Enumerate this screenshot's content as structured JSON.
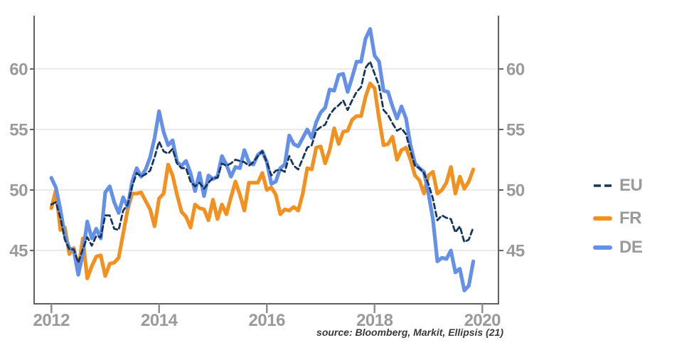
{
  "source_note": "source: Bloomberg, Markit, Ellipsis (21)",
  "legend": {
    "position": "right",
    "items": [
      {
        "label": "EU",
        "color": "#17365d",
        "style": "dashed"
      },
      {
        "label": "FR",
        "color": "#f2911f",
        "style": "solid"
      },
      {
        "label": "DE",
        "color": "#6590e8",
        "style": "solid"
      }
    ]
  },
  "chart_data": {
    "type": "line",
    "title": "",
    "xlabel": "",
    "ylabel": "",
    "frequency": "monthly",
    "x_start": "2012-01",
    "x_end": "2019-11",
    "xlim": [
      2011.68,
      2020.3
    ],
    "ylim": [
      40.6,
      64.4
    ],
    "x_tick_values": [
      2012,
      2014,
      2016,
      2018,
      2020
    ],
    "x_tick_labels": [
      "2012",
      "2014",
      "2016",
      "2018",
      "2020"
    ],
    "y_ticks": [
      45,
      50,
      55,
      60
    ],
    "y_tick_labels": [
      "45",
      "50",
      "55",
      "60"
    ],
    "y_axis_sides": "both",
    "grid": "horizontal",
    "legend_position": "right",
    "draw_order": [
      "FR",
      "DE",
      "EU"
    ],
    "series": [
      {
        "name": "EU",
        "color": "#17365d",
        "line_style": "dashed",
        "line_width": 2.8,
        "values": [
          48.8,
          49.0,
          47.7,
          45.9,
          45.1,
          45.1,
          44.0,
          45.1,
          46.1,
          45.4,
          46.2,
          46.1,
          47.9,
          47.9,
          46.8,
          46.7,
          48.3,
          48.8,
          50.3,
          51.4,
          51.1,
          51.3,
          51.6,
          52.7,
          54.0,
          53.2,
          53.0,
          53.4,
          52.2,
          51.8,
          51.8,
          50.7,
          50.3,
          50.6,
          50.1,
          50.6,
          51.0,
          51.0,
          52.2,
          52.0,
          52.2,
          52.5,
          52.4,
          52.3,
          52.0,
          52.3,
          52.8,
          53.2,
          52.3,
          51.2,
          51.6,
          51.7,
          51.5,
          52.8,
          52.0,
          51.7,
          52.6,
          53.5,
          53.7,
          54.9,
          55.2,
          55.4,
          56.2,
          56.7,
          57.0,
          57.4,
          56.6,
          57.4,
          58.1,
          58.5,
          60.1,
          60.6,
          59.6,
          58.6,
          56.6,
          56.2,
          55.5,
          54.9,
          55.1,
          54.6,
          53.2,
          52.0,
          51.8,
          51.4,
          50.5,
          49.3,
          47.5,
          47.9,
          47.7,
          47.6,
          46.5,
          47.0,
          45.7,
          45.9,
          46.9
        ]
      },
      {
        "name": "FR",
        "color": "#f2911f",
        "line_style": "solid",
        "line_width": 5.2,
        "values": [
          48.5,
          50.0,
          46.7,
          46.9,
          44.7,
          45.2,
          43.4,
          46.0,
          42.7,
          43.7,
          44.5,
          44.6,
          42.9,
          43.9,
          44.0,
          44.4,
          46.4,
          48.4,
          49.7,
          49.7,
          49.8,
          49.1,
          48.4,
          47.0,
          49.3,
          49.7,
          52.1,
          51.2,
          49.6,
          48.2,
          47.8,
          46.9,
          48.8,
          48.5,
          48.4,
          47.5,
          49.2,
          47.6,
          48.8,
          48.0,
          49.4,
          50.7,
          49.6,
          48.3,
          50.6,
          50.6,
          50.6,
          51.4,
          50.0,
          50.2,
          49.6,
          48.0,
          48.4,
          48.3,
          48.6,
          48.3,
          49.7,
          51.8,
          51.7,
          53.5,
          53.6,
          52.2,
          53.3,
          55.1,
          53.8,
          54.8,
          54.9,
          55.8,
          56.1,
          56.1,
          57.7,
          58.8,
          58.4,
          55.9,
          53.7,
          53.8,
          54.4,
          52.5,
          53.3,
          53.5,
          52.5,
          51.2,
          50.8,
          49.7,
          51.2,
          51.5,
          49.7,
          50.0,
          50.6,
          51.9,
          49.7,
          51.1,
          50.1,
          50.7,
          51.7
        ]
      },
      {
        "name": "DE",
        "color": "#6590e8",
        "line_style": "solid",
        "line_width": 5.2,
        "values": [
          51.0,
          50.2,
          48.4,
          46.2,
          45.2,
          45.0,
          43.0,
          44.7,
          47.4,
          46.0,
          46.8,
          46.0,
          49.8,
          50.3,
          49.0,
          48.1,
          49.4,
          48.6,
          50.7,
          51.8,
          51.1,
          51.7,
          52.7,
          54.3,
          56.5,
          54.8,
          53.7,
          54.1,
          52.3,
          52.0,
          52.4,
          51.4,
          49.9,
          51.4,
          49.5,
          51.2,
          50.9,
          51.1,
          52.8,
          52.1,
          51.1,
          51.9,
          51.8,
          53.3,
          52.3,
          52.1,
          52.9,
          53.2,
          52.3,
          50.5,
          50.7,
          51.8,
          52.1,
          54.5,
          53.8,
          53.6,
          54.3,
          55.0,
          54.3,
          55.6,
          56.4,
          56.8,
          58.3,
          58.2,
          59.5,
          59.6,
          58.1,
          59.3,
          60.6,
          60.6,
          62.5,
          63.3,
          61.1,
          60.6,
          58.2,
          58.1,
          56.9,
          55.9,
          56.9,
          55.9,
          53.7,
          52.2,
          51.8,
          51.5,
          49.7,
          47.6,
          44.1,
          44.4,
          44.3,
          45.0,
          43.2,
          43.5,
          41.7,
          42.1,
          44.1
        ]
      }
    ],
    "source": "source: Bloomberg, Markit, Ellipsis (21)"
  }
}
